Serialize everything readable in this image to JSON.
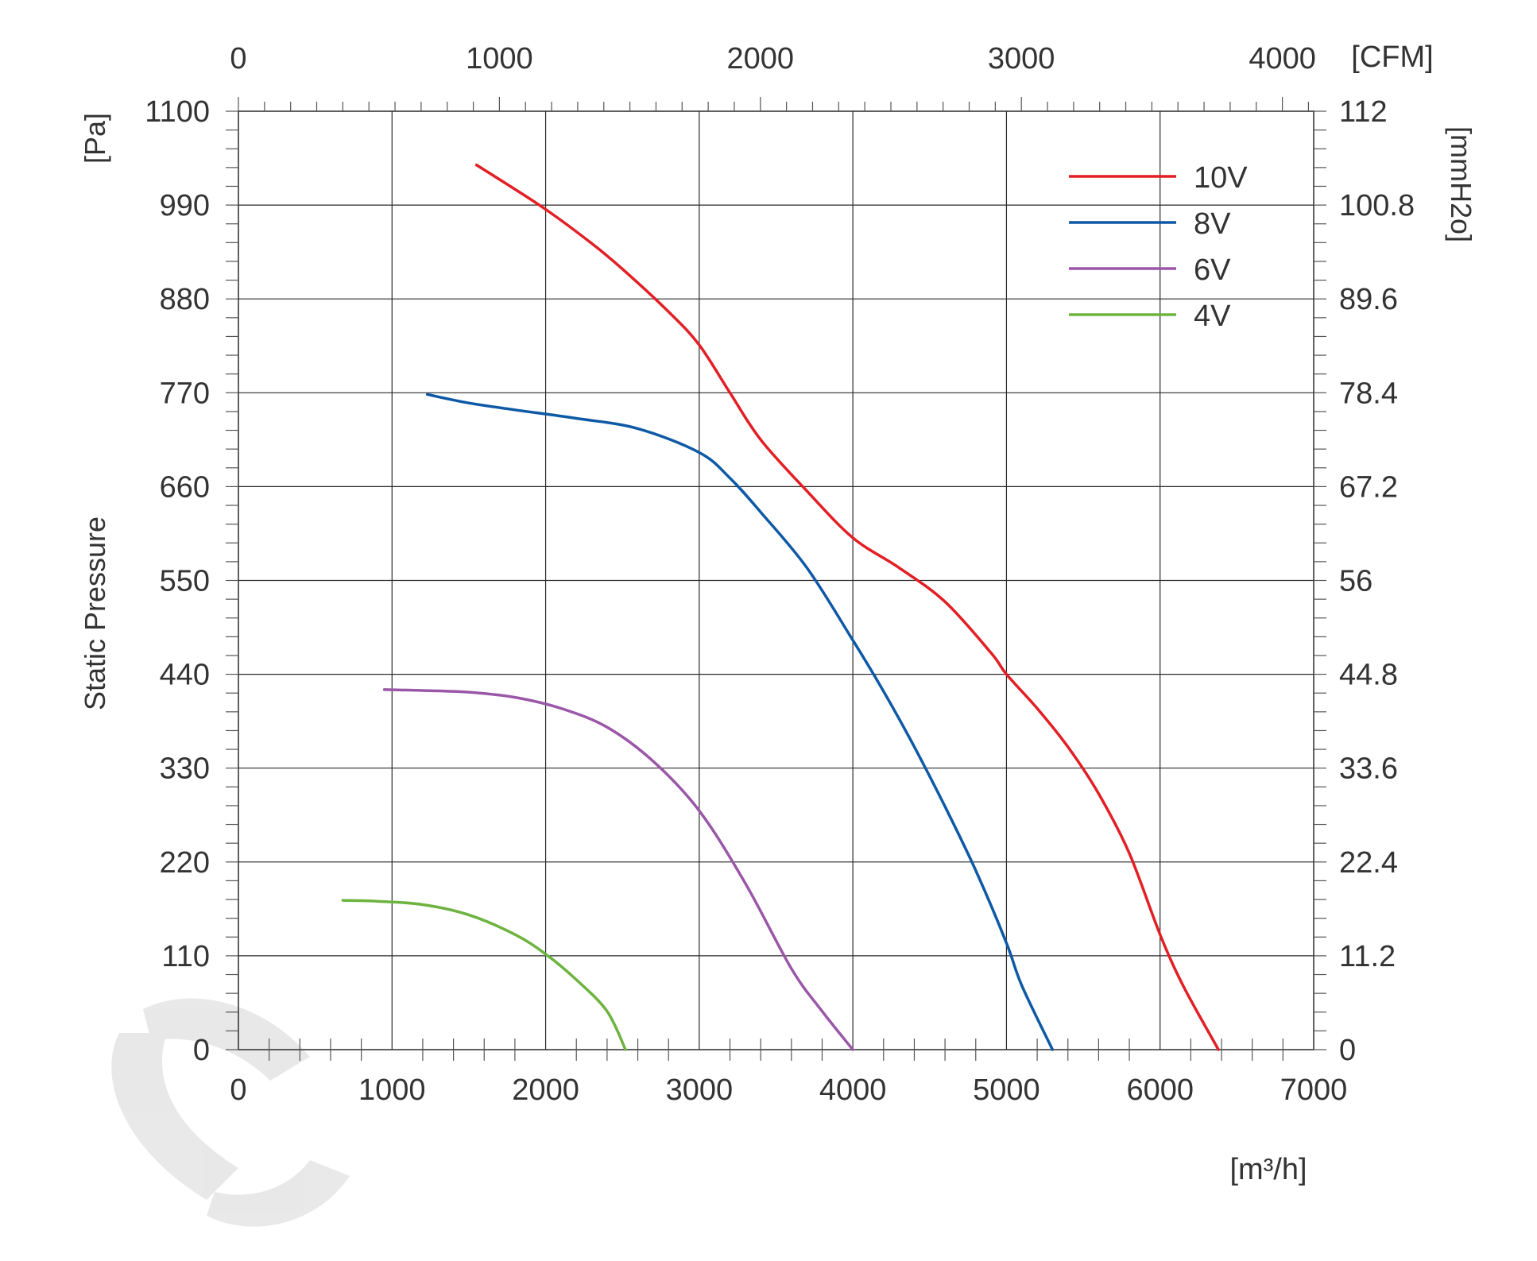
{
  "chart_data": {
    "type": "line",
    "xlabel": "[m³/h]",
    "ylabel": "Static Pressure",
    "y_unit_label": "[Pa]",
    "top_axis_label": "[CFM]",
    "right_axis_label": "[mmH2o]",
    "xlim": [
      0,
      7000
    ],
    "ylim": [
      0,
      1100
    ],
    "top_xlim": [
      0,
      4120
    ],
    "right_ylim": [
      0,
      112
    ],
    "x_ticks": [
      0,
      1000,
      2000,
      3000,
      4000,
      5000,
      6000,
      7000
    ],
    "y_ticks": [
      0,
      110,
      220,
      330,
      440,
      550,
      660,
      770,
      880,
      990,
      1100
    ],
    "top_ticks": [
      0,
      1000,
      2000,
      3000,
      4000
    ],
    "right_ticks": [
      "0",
      "11.2",
      "22.4",
      "33.6",
      "44.8",
      "56",
      "67.2",
      "78.4",
      "89.6",
      "100.8",
      "112"
    ],
    "grid": true,
    "legend_position": "top-right",
    "series": [
      {
        "name": "10V",
        "color": "#e31e24",
        "x": [
          1550,
          1700,
          2000,
          2300,
          2500,
          2800,
          3000,
          3200,
          3400,
          3700,
          4000,
          4300,
          4600,
          4900,
          5000,
          5200,
          5400,
          5600,
          5800,
          6000,
          6150,
          6380
        ],
        "y": [
          1037,
          1020,
          985,
          945,
          915,
          865,
          826,
          770,
          715,
          655,
          600,
          565,
          525,
          465,
          440,
          400,
          355,
          300,
          230,
          135,
          75,
          0
        ]
      },
      {
        "name": "8V",
        "color": "#0e59a6",
        "x": [
          1230,
          1500,
          1800,
          2200,
          2600,
          3000,
          3200,
          3400,
          3700,
          4000,
          4200,
          4400,
          4600,
          4800,
          5000,
          5100,
          5300
        ],
        "y": [
          768,
          758,
          750,
          740,
          728,
          700,
          670,
          630,
          565,
          480,
          420,
          355,
          285,
          210,
          125,
          75,
          0
        ]
      },
      {
        "name": "6V",
        "color": "#9a57a8",
        "x": [
          950,
          1200,
          1500,
          1800,
          2100,
          2400,
          2700,
          3000,
          3300,
          3600,
          3800,
          4000
        ],
        "y": [
          422,
          421,
          419,
          413,
          400,
          378,
          338,
          280,
          195,
          95,
          45,
          0
        ]
      },
      {
        "name": "4V",
        "color": "#6db33f",
        "x": [
          680,
          900,
          1200,
          1500,
          1800,
          2000,
          2200,
          2400,
          2520
        ],
        "y": [
          175,
          174,
          170,
          158,
          135,
          112,
          82,
          45,
          0
        ]
      }
    ]
  }
}
